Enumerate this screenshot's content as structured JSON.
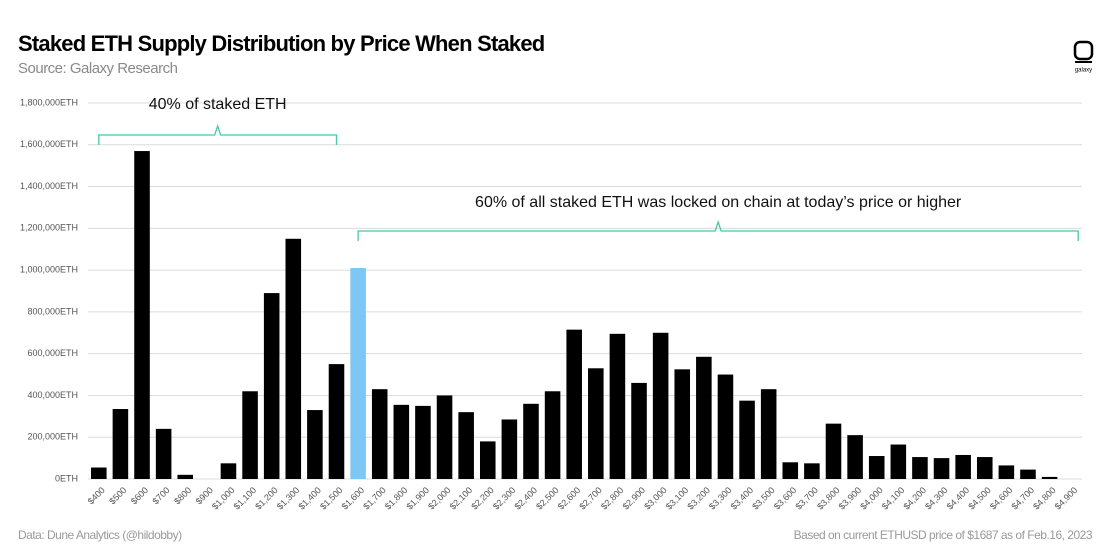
{
  "chart_data": {
    "type": "bar",
    "title": "Staked ETH Supply Distribution by Price When Staked",
    "subtitle": "Source: Galaxy Research",
    "logo_text": "galaxy",
    "footnote_left": "Data: Dune Analytics (@hildobby)",
    "footnote_right": "Based on current ETHUSD price of $1687 as of Feb.16, 2023",
    "annotations": [
      "40% of staked ETH",
      "60% of all staked ETH was locked on chain at today’s price or higher"
    ],
    "categories": [
      "$400",
      "$500",
      "$600",
      "$700",
      "$800",
      "$900",
      "$1,000",
      "$1,100",
      "$1,200",
      "$1,300",
      "$1,400",
      "$1,500",
      "$1,600",
      "$1,700",
      "$1,800",
      "$1,900",
      "$2,000",
      "$2,100",
      "$2,200",
      "$2,300",
      "$2,400",
      "$2,500",
      "$2,600",
      "$2,700",
      "$2,800",
      "$2,900",
      "$3,000",
      "$3,100",
      "$3,200",
      "$3,300",
      "$3,400",
      "$3,500",
      "$3,600",
      "$3,700",
      "$3,800",
      "$3,900",
      "$4,000",
      "$4,100",
      "$4,200",
      "$4,300",
      "$4,400",
      "$4,500",
      "$4,600",
      "$4,700",
      "$4,800",
      "$4,900"
    ],
    "values": [
      55000,
      335000,
      1570000,
      240000,
      20000,
      0,
      75000,
      420000,
      890000,
      1150000,
      330000,
      550000,
      1010000,
      430000,
      355000,
      350000,
      400000,
      320000,
      180000,
      285000,
      360000,
      420000,
      715000,
      530000,
      695000,
      460000,
      700000,
      525000,
      585000,
      500000,
      375000,
      430000,
      80000,
      75000,
      265000,
      210000,
      110000,
      165000,
      105000,
      100000,
      115000,
      105000,
      65000,
      45000,
      10000,
      0
    ],
    "colors": [
      "#000000",
      "#000000",
      "#000000",
      "#000000",
      "#000000",
      "#000000",
      "#000000",
      "#000000",
      "#000000",
      "#000000",
      "#000000",
      "#000000",
      "#7cc8f2",
      "#000000",
      "#000000",
      "#000000",
      "#000000",
      "#000000",
      "#000000",
      "#000000",
      "#000000",
      "#000000",
      "#000000",
      "#000000",
      "#000000",
      "#000000",
      "#000000",
      "#000000",
      "#000000",
      "#000000",
      "#000000",
      "#000000",
      "#000000",
      "#000000",
      "#000000",
      "#000000",
      "#000000",
      "#000000",
      "#000000",
      "#000000",
      "#000000",
      "#000000",
      "#000000",
      "#000000",
      "#000000",
      "#000000"
    ],
    "ylim": [
      0,
      1800000
    ],
    "yticks": [
      {
        "value": 0,
        "label": "0ETH"
      },
      {
        "value": 200000,
        "label": "200,000ETH"
      },
      {
        "value": 400000,
        "label": "400,000ETH"
      },
      {
        "value": 600000,
        "label": "600,000ETH"
      },
      {
        "value": 800000,
        "label": "800,000ETH"
      },
      {
        "value": 1000000,
        "label": "1,000,000ETH"
      },
      {
        "value": 1200000,
        "label": "1,200,000ETH"
      },
      {
        "value": 1400000,
        "label": "1,400,000ETH"
      },
      {
        "value": 1600000,
        "label": "1,600,000ETH"
      },
      {
        "value": 1800000,
        "label": "1,800,000ETH"
      }
    ],
    "grid": true
  }
}
